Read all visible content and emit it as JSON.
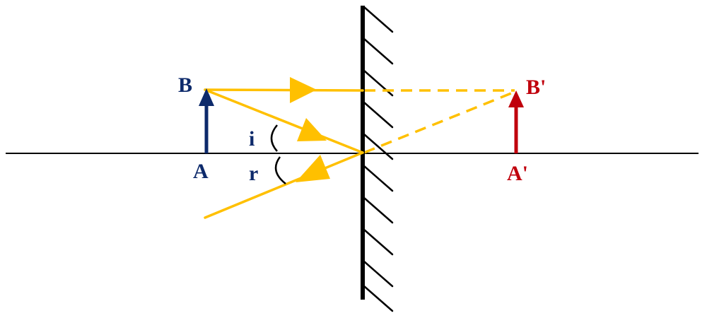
{
  "colors": {
    "object": "#0d2a6b",
    "image": "#c0000c",
    "ray": "#ffc000",
    "mirror": "#000000",
    "axis": "#000000"
  },
  "labels": {
    "object_top": "B",
    "object_base": "A",
    "image_top": "B'",
    "image_base": "A'",
    "incidence_angle": "i",
    "reflection_angle": "r"
  }
}
